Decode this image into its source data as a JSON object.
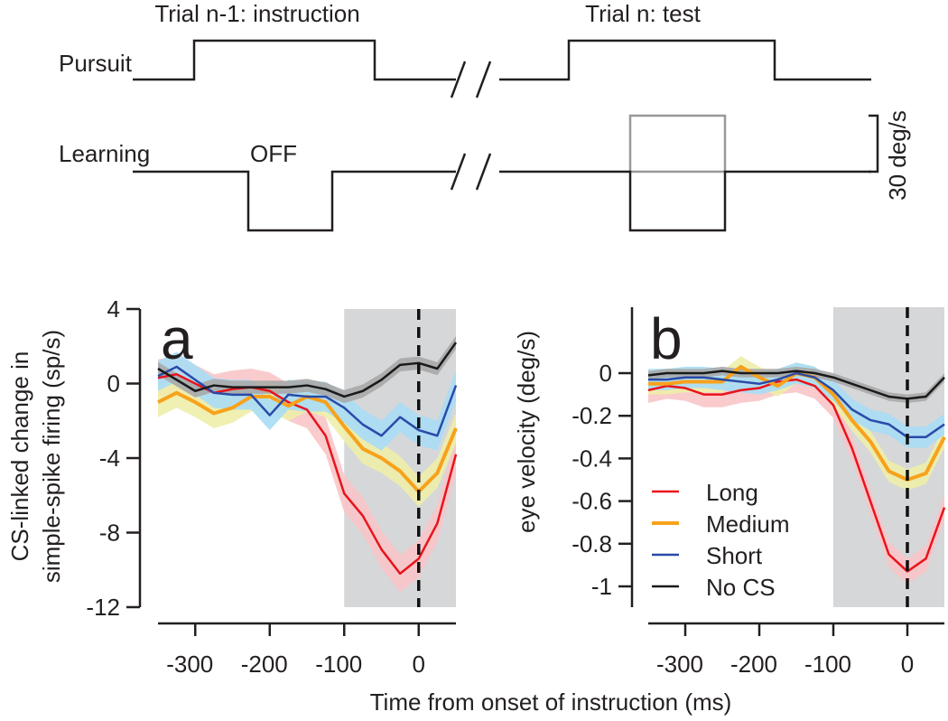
{
  "schematic": {
    "trial_prev_label": "Trial n-1: instruction",
    "trial_test_label": "Trial n: test",
    "pursuit_label": "Pursuit",
    "learning_label": "Learning",
    "off_label": "OFF",
    "scale_label": "30 deg/s"
  },
  "chart_data": [
    {
      "type": "line",
      "panel_label": "a",
      "ylabel_lines": [
        "CS-linked change in",
        "simple-spike firing (sp/s)"
      ],
      "xlabel": "Time from onset of instruction (ms)",
      "xlim": [
        -350,
        50
      ],
      "ylim": [
        -12,
        4
      ],
      "xticks": [
        -300,
        -200,
        -100,
        0
      ],
      "xtick_labels": [
        "-300",
        "-200",
        "-100",
        "0"
      ],
      "yticks": [
        4,
        0,
        -4,
        -8,
        -12
      ],
      "ytick_labels": [
        "4",
        "0",
        "-4",
        "-8",
        "-12"
      ],
      "shaded_region": [
        -100,
        50
      ],
      "vline": 0,
      "x": [
        -350,
        -325,
        -300,
        -275,
        -250,
        -225,
        -200,
        -175,
        -150,
        -125,
        -100,
        -75,
        -50,
        -25,
        0,
        25,
        50
      ],
      "series": [
        {
          "name": "Long",
          "color": "#e8141b",
          "band": "#f8c5c8",
          "err": 1.0,
          "values": [
            0.3,
            0.5,
            0.0,
            -0.5,
            -0.3,
            -0.2,
            -0.4,
            -1.0,
            -1.4,
            -2.8,
            -5.9,
            -7.1,
            -8.9,
            -10.2,
            -9.4,
            -7.5,
            -3.8
          ]
        },
        {
          "name": "Medium",
          "color": "#f7a21b",
          "band": "#eeeeaa",
          "err": 0.8,
          "values": [
            -1.0,
            -0.5,
            -1.0,
            -1.6,
            -1.3,
            -0.7,
            -0.7,
            -1.2,
            -0.7,
            -1.0,
            -2.3,
            -3.5,
            -4.0,
            -4.7,
            -5.8,
            -4.8,
            -2.4
          ]
        },
        {
          "name": "Short",
          "color": "#2a4aa8",
          "band": "#a8ddf5",
          "err": 0.8,
          "values": [
            0.4,
            0.9,
            0.2,
            -0.5,
            -0.6,
            -0.6,
            -1.7,
            -0.6,
            -0.7,
            -0.7,
            -1.3,
            -2.2,
            -2.8,
            -1.8,
            -2.5,
            -2.8,
            -0.1
          ]
        },
        {
          "name": "No CS",
          "color": "#1a1a1a",
          "band": "#a9a9a9",
          "err": 0.35,
          "values": [
            0.8,
            0.2,
            -0.4,
            -0.1,
            -0.2,
            -0.2,
            -0.2,
            -0.2,
            -0.1,
            -0.3,
            -0.7,
            -0.4,
            0.2,
            1.0,
            1.1,
            0.8,
            2.2
          ]
        }
      ]
    },
    {
      "type": "line",
      "panel_label": "b",
      "ylabel_lines": [
        "eye velocity (deg/s)"
      ],
      "xlabel": "Time from onset of instruction (ms)",
      "xlim": [
        -350,
        50
      ],
      "ylim": [
        -1.1,
        0.3
      ],
      "xticks": [
        -300,
        -200,
        -100,
        0
      ],
      "xtick_labels": [
        "-300",
        "-200",
        "-100",
        "0"
      ],
      "yticks": [
        0,
        -0.2,
        -0.4,
        -0.6,
        -0.8,
        -1
      ],
      "ytick_labels": [
        "0",
        "-0.2",
        "-0.4",
        "-0.6",
        "-0.8",
        "-1"
      ],
      "shaded_region": [
        -100,
        50
      ],
      "vline": 0,
      "legend": {
        "placement": "bottom-left",
        "entries": [
          "Long",
          "Medium",
          "Short",
          "No CS"
        ]
      },
      "x": [
        -350,
        -325,
        -300,
        -275,
        -250,
        -225,
        -200,
        -175,
        -150,
        -125,
        -100,
        -75,
        -50,
        -25,
        0,
        25,
        50
      ],
      "series": [
        {
          "name": "Long",
          "color": "#e8141b",
          "band": "#f8c5c8",
          "err": 0.06,
          "values": [
            -0.08,
            -0.06,
            -0.07,
            -0.1,
            -0.1,
            -0.08,
            -0.07,
            -0.04,
            -0.03,
            -0.06,
            -0.15,
            -0.35,
            -0.6,
            -0.85,
            -0.93,
            -0.87,
            -0.63
          ]
        },
        {
          "name": "Medium",
          "color": "#f7a21b",
          "band": "#eeeeaa",
          "err": 0.05,
          "values": [
            -0.05,
            -0.05,
            -0.04,
            -0.04,
            -0.04,
            0.03,
            -0.02,
            -0.06,
            0.0,
            -0.02,
            -0.1,
            -0.22,
            -0.32,
            -0.46,
            -0.5,
            -0.47,
            -0.3
          ]
        },
        {
          "name": "Short",
          "color": "#2a4aa8",
          "band": "#a8ddf5",
          "err": 0.05,
          "values": [
            -0.03,
            -0.03,
            -0.02,
            -0.02,
            -0.03,
            -0.04,
            -0.05,
            -0.03,
            0.0,
            -0.02,
            -0.08,
            -0.17,
            -0.22,
            -0.24,
            -0.3,
            -0.3,
            -0.24
          ]
        },
        {
          "name": "No CS",
          "color": "#1a1a1a",
          "band": "#a9a9a9",
          "err": 0.02,
          "values": [
            -0.01,
            0.0,
            0.0,
            0.0,
            0.01,
            0.0,
            0.0,
            0.0,
            0.01,
            0.0,
            -0.02,
            -0.05,
            -0.08,
            -0.11,
            -0.12,
            -0.11,
            -0.02
          ]
        }
      ]
    }
  ]
}
